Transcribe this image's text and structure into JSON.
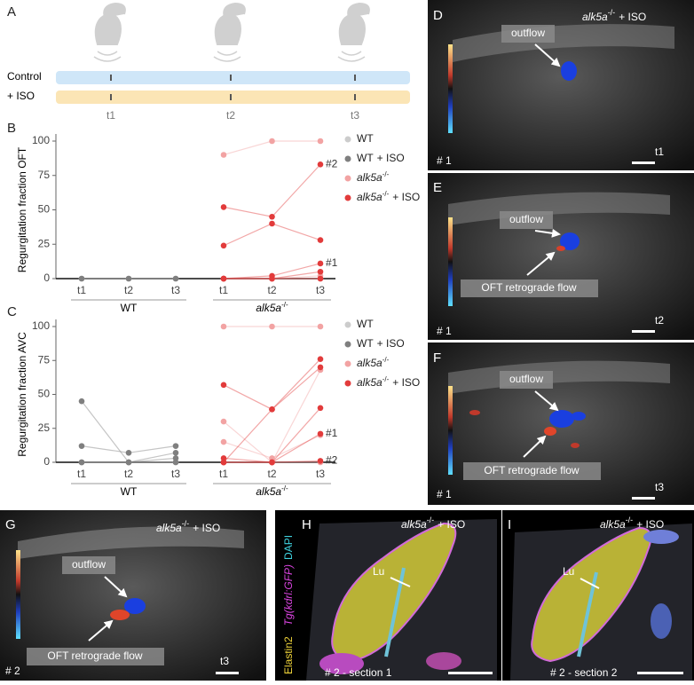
{
  "panels": {
    "A": {
      "letter": "A",
      "rows": [
        "Control",
        "+ ISO"
      ],
      "timepoints": [
        "t1",
        "t2",
        "t3"
      ]
    },
    "D": {
      "letter": "D",
      "title": {
        "gene": "alk5a",
        "sup": "-/-",
        "suffix": "+ ISO"
      },
      "labels": [
        "outflow"
      ],
      "fish": "# 1",
      "time": "t1"
    },
    "E": {
      "letter": "E",
      "labels": [
        "outflow",
        "OFT retrograde flow"
      ],
      "fish": "# 1",
      "time": "t2"
    },
    "F": {
      "letter": "F",
      "labels": [
        "outflow",
        "OFT retrograde flow"
      ],
      "fish": "# 1",
      "time": "t3"
    },
    "G": {
      "letter": "G",
      "title": {
        "gene": "alk5a",
        "sup": "-/-",
        "suffix": "+ ISO"
      },
      "labels": [
        "outflow",
        "OFT retrograde flow"
      ],
      "fish": "# 2",
      "time": "t3"
    },
    "H": {
      "letter": "H",
      "title": {
        "gene": "alk5a",
        "sup": "-/-",
        "suffix": "+ ISO"
      },
      "stains": [
        "Tg(kdrl:GFP)",
        "DAPI",
        "Elastin2"
      ],
      "lumen": "Lu",
      "section": "# 2 - section 1"
    },
    "I": {
      "letter": "I",
      "title": {
        "gene": "alk5a",
        "sup": "-/-",
        "suffix": "+ ISO"
      },
      "lumen": "Lu",
      "section": "# 2 - section 2"
    }
  },
  "chart_data": [
    {
      "type": "line",
      "panel_label": "B",
      "ylabel": "Regurgitation fraction OFT",
      "categories": [
        "t1",
        "t2",
        "t3",
        "t1",
        "t2",
        "t3"
      ],
      "groups": [
        {
          "label": "WT"
        },
        {
          "label": "alk5a",
          "sup": "-/-"
        }
      ],
      "ylim": [
        0,
        100
      ],
      "yticks": [
        0,
        25,
        50,
        75,
        100
      ],
      "legend": [
        {
          "name": "WT",
          "color": "#cccccc"
        },
        {
          "name": "WT",
          "suffix": "+ ISO",
          "color": "#7f7f7f"
        },
        {
          "name": "alk5a",
          "sup": "-/-",
          "color": "#f2a3a3"
        },
        {
          "name": "alk5a",
          "sup": "-/-",
          "suffix": "+ ISO",
          "color": "#e23b3b"
        }
      ],
      "series": [
        {
          "color": "#cccccc",
          "values": [
            0,
            0,
            0,
            null,
            null,
            null
          ]
        },
        {
          "color": "#7f7f7f",
          "values": [
            0,
            0,
            0,
            null,
            null,
            null
          ]
        },
        {
          "color": "#f2a3a3",
          "values": [
            null,
            null,
            null,
            90,
            100,
            100
          ]
        },
        {
          "color": "#f2a3a3",
          "values": [
            null,
            null,
            null,
            0,
            0,
            0
          ]
        },
        {
          "color": "#f2a3a3",
          "values": [
            null,
            null,
            null,
            0,
            0,
            2
          ]
        },
        {
          "color": "#e23b3b",
          "values": [
            null,
            null,
            null,
            52,
            45,
            83
          ],
          "label": "#2"
        },
        {
          "color": "#e23b3b",
          "values": [
            null,
            null,
            null,
            24,
            40,
            28
          ]
        },
        {
          "color": "#e23b3b",
          "values": [
            null,
            null,
            null,
            0,
            2,
            11
          ],
          "label": "#1"
        },
        {
          "color": "#e23b3b",
          "values": [
            null,
            null,
            null,
            0,
            0,
            5
          ]
        },
        {
          "color": "#e23b3b",
          "values": [
            null,
            null,
            null,
            0,
            0,
            0
          ]
        }
      ]
    },
    {
      "type": "line",
      "panel_label": "C",
      "ylabel": "Regurgitation fraction AVC",
      "categories": [
        "t1",
        "t2",
        "t3",
        "t1",
        "t2",
        "t3"
      ],
      "groups": [
        {
          "label": "WT"
        },
        {
          "label": "alk5a",
          "sup": "-/-"
        }
      ],
      "ylim": [
        0,
        100
      ],
      "yticks": [
        0,
        25,
        50,
        75,
        100
      ],
      "legend": [
        {
          "name": "WT",
          "color": "#cccccc"
        },
        {
          "name": "WT",
          "suffix": "+ ISO",
          "color": "#7f7f7f"
        },
        {
          "name": "alk5a",
          "sup": "-/-",
          "color": "#f2a3a3"
        },
        {
          "name": "alk5a",
          "sup": "-/-",
          "suffix": "+ ISO",
          "color": "#e23b3b"
        }
      ],
      "series": [
        {
          "color": "#cccccc",
          "values": [
            0,
            0,
            0,
            null,
            null,
            null
          ]
        },
        {
          "color": "#7f7f7f",
          "values": [
            45,
            0,
            7,
            null,
            null,
            null
          ]
        },
        {
          "color": "#7f7f7f",
          "values": [
            12,
            7,
            12,
            null,
            null,
            null
          ]
        },
        {
          "color": "#7f7f7f",
          "values": [
            0,
            0,
            3,
            null,
            null,
            null
          ]
        },
        {
          "color": "#7f7f7f",
          "values": [
            0,
            0,
            0,
            null,
            null,
            null
          ]
        },
        {
          "color": "#f2a3a3",
          "values": [
            null,
            null,
            null,
            100,
            100,
            100
          ]
        },
        {
          "color": "#f2a3a3",
          "values": [
            null,
            null,
            null,
            30,
            0,
            68
          ]
        },
        {
          "color": "#f2a3a3",
          "values": [
            null,
            null,
            null,
            15,
            3,
            20
          ]
        },
        {
          "color": "#f2a3a3",
          "values": [
            null,
            null,
            null,
            0,
            0,
            0
          ]
        },
        {
          "color": "#e23b3b",
          "values": [
            null,
            null,
            null,
            57,
            39,
            76
          ]
        },
        {
          "color": "#e23b3b",
          "values": [
            null,
            null,
            null,
            0,
            39,
            70
          ]
        },
        {
          "color": "#e23b3b",
          "values": [
            null,
            null,
            null,
            3,
            0,
            40
          ]
        },
        {
          "color": "#e23b3b",
          "values": [
            null,
            null,
            null,
            0,
            0,
            21
          ],
          "label": "#1"
        },
        {
          "color": "#e23b3b",
          "values": [
            null,
            null,
            null,
            0,
            0,
            1
          ],
          "label": "#2"
        }
      ]
    }
  ]
}
